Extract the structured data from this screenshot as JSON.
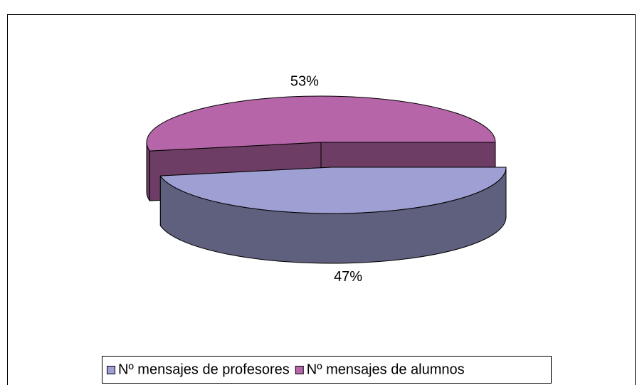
{
  "chart_data": {
    "type": "pie",
    "categories": [
      "Nº mensajes de profesores",
      "Nº mensajes de alumnos"
    ],
    "values": [
      47,
      53
    ],
    "value_labels": [
      "47%",
      "53%"
    ],
    "colors": [
      "#9e9fd2",
      "#b565a8"
    ],
    "legend": "bottom"
  }
}
